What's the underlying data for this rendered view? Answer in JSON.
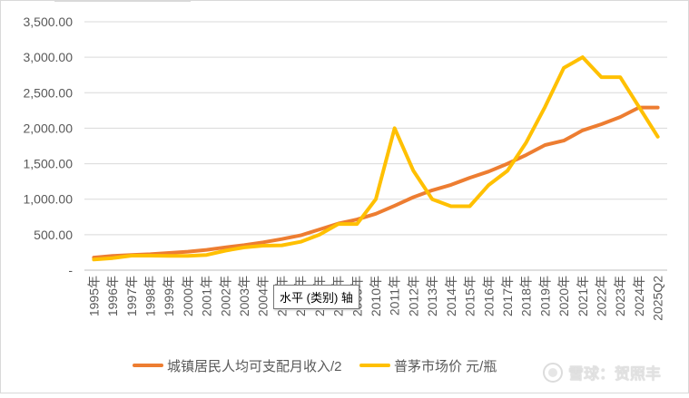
{
  "chart_data": {
    "type": "line",
    "categories": [
      "1995年",
      "1996年",
      "1997年",
      "1998年",
      "1999年",
      "2000年",
      "2001年",
      "2002年",
      "2003年",
      "2004年",
      "2005年",
      "2006年",
      "2007年",
      "2008年",
      "2009年",
      "2010年",
      "2011年",
      "2012年",
      "2013年",
      "2014年",
      "2015年",
      "2016年",
      "2017年",
      "2018年",
      "2019年",
      "2020年",
      "2021年",
      "2022年",
      "2023年",
      "2024年",
      "2025Q2"
    ],
    "ylim": [
      0,
      3500
    ],
    "yticks": [
      {
        "value": 0,
        "label": "-"
      },
      {
        "value": 500,
        "label": "500.00"
      },
      {
        "value": 1000,
        "label": "1,000.00"
      },
      {
        "value": 1500,
        "label": "1,500.00"
      },
      {
        "value": 2000,
        "label": "2,000.00"
      },
      {
        "value": 2500,
        "label": "2,500.00"
      },
      {
        "value": 3000,
        "label": "3,000.00"
      },
      {
        "value": 3500,
        "label": "3,500.00"
      }
    ],
    "grid": true,
    "legend_position": "bottom",
    "series": [
      {
        "name": "城镇居民人均可支配月收入/2",
        "color": "#ED7D31",
        "values": [
          178,
          201,
          215,
          225,
          243,
          260,
          286,
          322,
          354,
          392,
          438,
          490,
          573,
          656,
          714,
          795,
          908,
          1028,
          1125,
          1202,
          1302,
          1390,
          1500,
          1623,
          1763,
          1825,
          1970,
          2057,
          2158,
          2292,
          2292
        ]
      },
      {
        "name": "普茅市场价 元/瓶",
        "color": "#FFC000",
        "values": [
          150,
          170,
          205,
          205,
          200,
          200,
          215,
          275,
          320,
          345,
          350,
          400,
          500,
          650,
          650,
          1000,
          2000,
          1400,
          1000,
          900,
          900,
          1200,
          1400,
          1800,
          2300,
          2850,
          3000,
          2720,
          2720,
          2300,
          1880
        ]
      }
    ]
  },
  "overlay": {
    "tooltip_text": "水平 (类别) 轴",
    "watermark_text": "雪球：贺照丰"
  }
}
